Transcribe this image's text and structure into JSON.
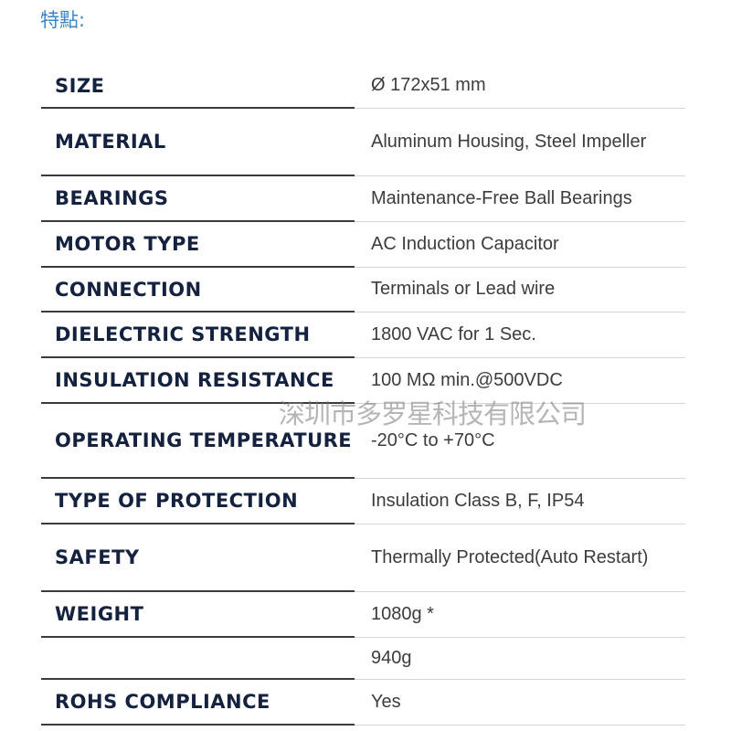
{
  "heading": "特點:",
  "watermark": "深圳市多罗星科技有限公司",
  "table": {
    "rows": [
      [
        "SIZE",
        "Ø 172x51 mm"
      ],
      [
        "MATERIAL",
        "Aluminum Housing, Steel Impeller"
      ],
      [
        "BEARINGS",
        "Maintenance-Free Ball Bearings"
      ],
      [
        "MOTOR TYPE",
        "AC Induction Capacitor"
      ],
      [
        "CONNECTION",
        "Terminals or Lead wire"
      ],
      [
        "DIELECTRIC STRENGTH",
        "1800 VAC for 1 Sec."
      ],
      [
        "INSULATION RESISTANCE",
        "100 MΩ min.@500VDC"
      ],
      [
        "OPERATING TEMPERATURE",
        "-20°C to +70°C"
      ],
      [
        "TYPE OF PROTECTION",
        "Insulation Class B, F, IP54"
      ],
      [
        "SAFETY",
        "Thermally Protected(Auto Restart)"
      ],
      [
        "WEIGHT",
        "1080g *"
      ],
      [
        null,
        "940g"
      ],
      [
        "ROHS COMPLIANCE",
        "Yes"
      ]
    ]
  }
}
